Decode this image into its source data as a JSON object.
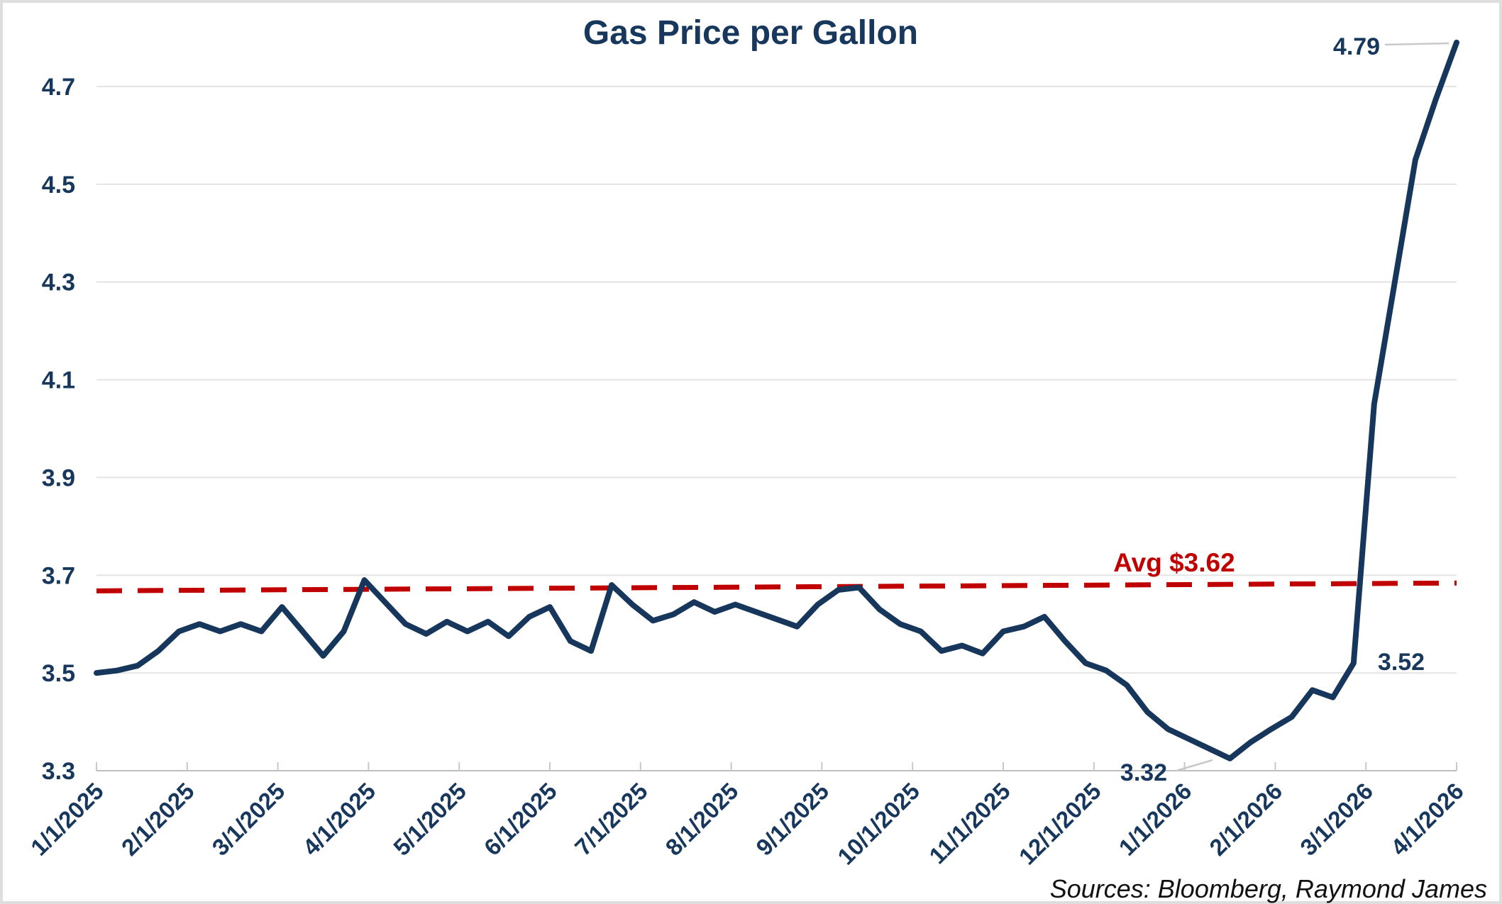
{
  "title": "Gas Price per Gallon",
  "source_note": "Sources: Bloomberg, Raymond James",
  "annotations": {
    "peak_label": "4.79",
    "pre_spike_label": "3.52",
    "low_label": "3.32",
    "avg_label": "Avg $3.62"
  },
  "colors": {
    "line": "#16365C",
    "avg_line": "#C00000",
    "text_navy": "#17375D",
    "grid": "#E4E4E4",
    "axis": "#BFBFBF",
    "tick": "#C8C8C8",
    "leader": "#C9C9C9",
    "source_text": "#111111",
    "background": "#FFFFFF",
    "border": "#DEDEDE"
  },
  "chart_data": {
    "type": "line",
    "title": "Gas Price per Gallon",
    "xlabel": "",
    "ylabel": "",
    "ylim": [
      3.3,
      4.85
    ],
    "grid": "horizontal",
    "legend": "none",
    "y_ticks": [
      3.3,
      3.5,
      3.7,
      3.9,
      4.1,
      4.3,
      4.5,
      4.7
    ],
    "y_tick_labels": [
      "3.3",
      "3.5",
      "3.7",
      "3.9",
      "4.1",
      "4.3",
      "4.5",
      "4.7"
    ],
    "x_tick_labels": [
      "1/1/2025",
      "2/1/2025",
      "3/1/2025",
      "4/1/2025",
      "5/1/2025",
      "6/1/2025",
      "7/1/2025",
      "8/1/2025",
      "9/1/2025",
      "10/1/2025",
      "11/1/2025",
      "12/1/2025",
      "1/1/2026",
      "2/1/2026",
      "3/1/2026",
      "4/1/2026"
    ],
    "series": [
      {
        "name": "Gas Price per Gallon (USD)",
        "cadence": "weekly",
        "start": "1/1/2025",
        "end": "4/1/2026",
        "values": [
          3.5,
          3.505,
          3.515,
          3.545,
          3.585,
          3.6,
          3.585,
          3.6,
          3.585,
          3.635,
          3.585,
          3.535,
          3.585,
          3.69,
          3.645,
          3.6,
          3.58,
          3.605,
          3.585,
          3.605,
          3.575,
          3.615,
          3.635,
          3.565,
          3.545,
          3.68,
          3.64,
          3.607,
          3.62,
          3.645,
          3.625,
          3.64,
          3.625,
          3.61,
          3.595,
          3.64,
          3.67,
          3.675,
          3.63,
          3.6,
          3.585,
          3.545,
          3.556,
          3.54,
          3.585,
          3.595,
          3.615,
          3.565,
          3.52,
          3.505,
          3.475,
          3.42,
          3.385,
          3.365,
          3.345,
          3.325,
          3.358,
          3.385,
          3.41,
          3.465,
          3.45,
          3.52,
          4.05,
          4.3,
          4.55,
          4.675,
          4.79
        ]
      }
    ],
    "average_line": {
      "label": "Avg $3.62",
      "value": 3.62,
      "style": "dashed",
      "display_start_value": 3.668,
      "display_end_value": 3.684
    },
    "point_annotations": [
      {
        "text": "4.79",
        "point": "last value (4/1/2026)",
        "value": 4.79
      },
      {
        "text": "3.52",
        "point": "pre-spike plateau (late 2/2026)",
        "value": 3.52
      },
      {
        "text": "3.32",
        "point": "minimum (mid 1/2026)",
        "value": 3.32
      }
    ]
  }
}
